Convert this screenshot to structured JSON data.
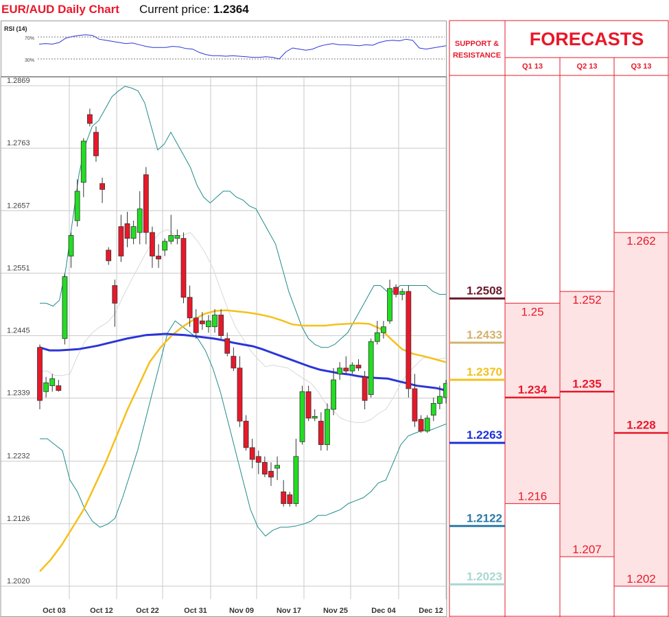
{
  "header": {
    "title": "EUR/AUD Daily Chart",
    "current_price_label": "Current price:",
    "current_price_value": "1.2364"
  },
  "colors": {
    "up_candle": "#22dd22",
    "down_candle": "#e8182a",
    "bollinger": "#1f8a8a",
    "ma_blue": "#2a35d8",
    "ma_yellow": "#f5c01a",
    "grid": "#c0c0c0",
    "forecast_red": "#e8182a",
    "forecast_fill": "#fde3e4"
  },
  "rsi": {
    "label": "RSI (14)",
    "levels": [
      "70%",
      "30%"
    ],
    "values": [
      57,
      58,
      57,
      60,
      68,
      71,
      73,
      74,
      73,
      66,
      64,
      62,
      60,
      58,
      59,
      56,
      53,
      51,
      51,
      51,
      53,
      52,
      49,
      48,
      42,
      38,
      36,
      36,
      35,
      36,
      35,
      34,
      33,
      33,
      34,
      33,
      30,
      43,
      50,
      48,
      46,
      48,
      53,
      56,
      58,
      56,
      56,
      55,
      54,
      56,
      55,
      60,
      63,
      64,
      63,
      66,
      64,
      50,
      48,
      50,
      52,
      54
    ]
  },
  "chart_data": {
    "type": "candlestick",
    "y_ticks": [
      "1.2869",
      "1.2763",
      "1.2657",
      "1.2551",
      "1.2445",
      "1.2339",
      "1.2232",
      "1.2126",
      "1.2020"
    ],
    "ylim": [
      1.202,
      1.2869
    ],
    "x_ticks": [
      "Oct 03",
      "Oct 12",
      "Oct 22",
      "Oct 31",
      "Nov 09",
      "Nov 17",
      "Nov 25",
      "Dec 04",
      "Dec 12"
    ],
    "candles": [
      {
        "o": 1.2425,
        "h": 1.243,
        "l": 1.232,
        "c": 1.2335
      },
      {
        "o": 1.235,
        "h": 1.2375,
        "l": 1.234,
        "c": 1.2365
      },
      {
        "o": 1.236,
        "h": 1.238,
        "l": 1.235,
        "c": 1.2372
      },
      {
        "o": 1.236,
        "h": 1.237,
        "l": 1.235,
        "c": 1.2352
      },
      {
        "o": 1.244,
        "h": 1.255,
        "l": 1.243,
        "c": 1.2545
      },
      {
        "o": 1.258,
        "h": 1.262,
        "l": 1.256,
        "c": 1.2615
      },
      {
        "o": 1.264,
        "h": 1.271,
        "l": 1.263,
        "c": 1.269
      },
      {
        "o": 1.2705,
        "h": 1.278,
        "l": 1.268,
        "c": 1.2775
      },
      {
        "o": 1.282,
        "h": 1.283,
        "l": 1.28,
        "c": 1.2805
      },
      {
        "o": 1.279,
        "h": 1.28,
        "l": 1.274,
        "c": 1.275
      },
      {
        "o": 1.2703,
        "h": 1.2713,
        "l": 1.267,
        "c": 1.2693
      },
      {
        "o": 1.259,
        "h": 1.2595,
        "l": 1.2565,
        "c": 1.2572
      },
      {
        "o": 1.253,
        "h": 1.254,
        "l": 1.246,
        "c": 1.25
      },
      {
        "o": 1.263,
        "h": 1.265,
        "l": 1.257,
        "c": 1.258
      },
      {
        "o": 1.2635,
        "h": 1.2655,
        "l": 1.2595,
        "c": 1.261
      },
      {
        "o": 1.261,
        "h": 1.264,
        "l": 1.26,
        "c": 1.263
      },
      {
        "o": 1.262,
        "h": 1.269,
        "l": 1.26,
        "c": 1.266
      },
      {
        "o": 1.2718,
        "h": 1.2731,
        "l": 1.26,
        "c": 1.262
      },
      {
        "o": 1.262,
        "h": 1.263,
        "l": 1.256,
        "c": 1.258
      },
      {
        "o": 1.258,
        "h": 1.26,
        "l": 1.256,
        "c": 1.2575
      },
      {
        "o": 1.259,
        "h": 1.261,
        "l": 1.258,
        "c": 1.2605
      },
      {
        "o": 1.2605,
        "h": 1.265,
        "l": 1.26,
        "c": 1.2615
      },
      {
        "o": 1.261,
        "h": 1.2625,
        "l": 1.26,
        "c": 1.2615
      },
      {
        "o": 1.261,
        "h": 1.262,
        "l": 1.25,
        "c": 1.251
      },
      {
        "o": 1.251,
        "h": 1.253,
        "l": 1.246,
        "c": 1.2475
      },
      {
        "o": 1.2475,
        "h": 1.249,
        "l": 1.244,
        "c": 1.245
      },
      {
        "o": 1.247,
        "h": 1.2485,
        "l": 1.2455,
        "c": 1.2465
      },
      {
        "o": 1.246,
        "h": 1.248,
        "l": 1.245,
        "c": 1.247
      },
      {
        "o": 1.246,
        "h": 1.249,
        "l": 1.245,
        "c": 1.248
      },
      {
        "o": 1.248,
        "h": 1.249,
        "l": 1.244,
        "c": 1.2445
      },
      {
        "o": 1.244,
        "h": 1.245,
        "l": 1.241,
        "c": 1.2415
      },
      {
        "o": 1.241,
        "h": 1.2425,
        "l": 1.2385,
        "c": 1.239
      },
      {
        "o": 1.239,
        "h": 1.241,
        "l": 1.229,
        "c": 1.23
      },
      {
        "o": 1.23,
        "h": 1.231,
        "l": 1.225,
        "c": 1.2255
      },
      {
        "o": 1.2255,
        "h": 1.227,
        "l": 1.222,
        "c": 1.2235
      },
      {
        "o": 1.224,
        "h": 1.225,
        "l": 1.221,
        "c": 1.223
      },
      {
        "o": 1.223,
        "h": 1.224,
        "l": 1.2205,
        "c": 1.221
      },
      {
        "o": 1.2215,
        "h": 1.223,
        "l": 1.219,
        "c": 1.2205
      },
      {
        "o": 1.222,
        "h": 1.224,
        "l": 1.22,
        "c": 1.2225
      },
      {
        "o": 1.218,
        "h": 1.22,
        "l": 1.2155,
        "c": 1.216
      },
      {
        "o": 1.2175,
        "h": 1.218,
        "l": 1.2155,
        "c": 1.216
      },
      {
        "o": 1.216,
        "h": 1.227,
        "l": 1.2155,
        "c": 1.224
      },
      {
        "o": 1.2265,
        "h": 1.236,
        "l": 1.226,
        "c": 1.235
      },
      {
        "o": 1.235,
        "h": 1.236,
        "l": 1.23,
        "c": 1.2305
      },
      {
        "o": 1.2305,
        "h": 1.232,
        "l": 1.23,
        "c": 1.2308
      },
      {
        "o": 1.23,
        "h": 1.2315,
        "l": 1.225,
        "c": 1.226
      },
      {
        "o": 1.226,
        "h": 1.233,
        "l": 1.225,
        "c": 1.232
      },
      {
        "o": 1.232,
        "h": 1.239,
        "l": 1.231,
        "c": 1.237
      },
      {
        "o": 1.238,
        "h": 1.24,
        "l": 1.237,
        "c": 1.239
      },
      {
        "o": 1.239,
        "h": 1.241,
        "l": 1.238,
        "c": 1.2385
      },
      {
        "o": 1.2385,
        "h": 1.24,
        "l": 1.238,
        "c": 1.2395
      },
      {
        "o": 1.2395,
        "h": 1.2405,
        "l": 1.2385,
        "c": 1.239
      },
      {
        "o": 1.2375,
        "h": 1.2385,
        "l": 1.232,
        "c": 1.2335
      },
      {
        "o": 1.2345,
        "h": 1.244,
        "l": 1.234,
        "c": 1.2435
      },
      {
        "o": 1.2435,
        "h": 1.247,
        "l": 1.243,
        "c": 1.245
      },
      {
        "o": 1.245,
        "h": 1.247,
        "l": 1.244,
        "c": 1.246
      },
      {
        "o": 1.247,
        "h": 1.254,
        "l": 1.2465,
        "c": 1.2525
      },
      {
        "o": 1.2527,
        "h": 1.2532,
        "l": 1.251,
        "c": 1.2515
      },
      {
        "o": 1.2515,
        "h": 1.2525,
        "l": 1.2505,
        "c": 1.252
      },
      {
        "o": 1.252,
        "h": 1.253,
        "l": 1.234,
        "c": 1.2355
      },
      {
        "o": 1.2355,
        "h": 1.238,
        "l": 1.229,
        "c": 1.23
      },
      {
        "o": 1.2303,
        "h": 1.231,
        "l": 1.228,
        "c": 1.2283
      },
      {
        "o": 1.2283,
        "h": 1.231,
        "l": 1.228,
        "c": 1.2305
      },
      {
        "o": 1.231,
        "h": 1.234,
        "l": 1.23,
        "c": 1.233
      },
      {
        "o": 1.233,
        "h": 1.236,
        "l": 1.232,
        "c": 1.2342
      },
      {
        "o": 1.234,
        "h": 1.237,
        "l": 1.233,
        "c": 1.2364
      }
    ],
    "bollinger_upper": [
      1.25,
      1.25,
      1.2495,
      1.2505,
      1.256,
      1.264,
      1.272,
      1.277,
      1.28,
      1.281,
      1.283,
      1.285,
      1.286,
      1.2868,
      1.2865,
      1.286,
      1.284,
      1.28,
      1.276,
      1.277,
      1.279,
      1.277,
      1.275,
      1.273,
      1.27,
      1.268,
      1.267,
      1.268,
      1.269,
      1.269,
      1.268,
      1.2675,
      1.2665,
      1.266,
      1.264,
      1.262,
      1.26,
      1.256,
      1.252,
      1.249,
      1.246,
      1.244,
      1.243,
      1.2425,
      1.2425,
      1.243,
      1.244,
      1.245,
      1.247,
      1.249,
      1.251,
      1.253,
      1.253,
      1.252,
      1.252,
      1.253,
      1.253,
      1.253,
      1.253,
      1.253,
      1.252,
      1.2515,
      1.2515
    ],
    "bollinger_lower": [
      1.227,
      1.227,
      1.226,
      1.225,
      1.22,
      1.218,
      1.215,
      1.213,
      1.212,
      1.2125,
      1.2135,
      1.217,
      1.221,
      1.225,
      1.23,
      1.235,
      1.24,
      1.245,
      1.247,
      1.246,
      1.245,
      1.244,
      1.242,
      1.239,
      1.235,
      1.23,
      1.225,
      1.22,
      1.215,
      1.212,
      1.2105,
      1.2115,
      1.212,
      1.212,
      1.2122,
      1.2125,
      1.213,
      1.214,
      1.214,
      1.2145,
      1.215,
      1.216,
      1.2165,
      1.217,
      1.218,
      1.2195,
      1.22,
      1.223,
      1.226,
      1.2275,
      1.228,
      1.2285,
      1.2285,
      1.229,
      1.2295
    ],
    "ma_blue": [
      1.2425,
      1.242,
      1.242,
      1.2421,
      1.2422,
      1.2425,
      1.2428,
      1.2432,
      1.2436,
      1.244,
      1.2443,
      1.2446,
      1.2447,
      1.2448,
      1.2447,
      1.2446,
      1.2444,
      1.2442,
      1.244,
      1.2437,
      1.2433,
      1.243,
      1.2427,
      1.2422,
      1.2416,
      1.241,
      1.2404,
      1.2398,
      1.2392,
      1.2387,
      1.2384,
      1.2381,
      1.2379,
      1.2376,
      1.2374,
      1.2373,
      1.2372,
      1.2368,
      1.2364,
      1.236,
      1.2358,
      1.2356,
      1.2352
    ],
    "ma_yellow": [
      1.2045,
      1.2065,
      1.209,
      1.212,
      1.215,
      1.219,
      1.223,
      1.2275,
      1.232,
      1.236,
      1.24,
      1.2425,
      1.2445,
      1.246,
      1.2472,
      1.2482,
      1.2487,
      1.2488,
      1.2486,
      1.2484,
      1.2481,
      1.2477,
      1.2471,
      1.2464,
      1.2462,
      1.2462,
      1.2462,
      1.2464,
      1.2465,
      1.2466,
      1.2465,
      1.2457,
      1.2439,
      1.2422,
      1.2414,
      1.241,
      1.2405,
      1.24
    ],
    "levels": [
      {
        "value": "1.2508",
        "price": 1.2508,
        "color": "#6b1a2a"
      },
      {
        "value": "1.2433",
        "price": 1.2433,
        "color": "#d4b26b"
      },
      {
        "value": "1.2370",
        "price": 1.237,
        "color": "#f5c01a"
      },
      {
        "value": "1.2263",
        "price": 1.2263,
        "color": "#1a2fd8"
      },
      {
        "value": "1.2122",
        "price": 1.2122,
        "color": "#2a7aa8"
      },
      {
        "value": "1.2023",
        "price": 1.2023,
        "color": "#a8d8d0"
      }
    ]
  },
  "forecasts": {
    "sr_header": [
      "SUPPORT &",
      "RESISTANCE"
    ],
    "title": "FORECASTS",
    "columns": [
      {
        "label": "Q1 13",
        "high": "1.25",
        "mid": "1.234",
        "low": "1.216"
      },
      {
        "label": "Q2 13",
        "high": "1.252",
        "mid": "1.235",
        "low": "1.207"
      },
      {
        "label": "Q3 13",
        "high": "1.262",
        "mid": "1.228",
        "low": "1.202"
      }
    ]
  }
}
